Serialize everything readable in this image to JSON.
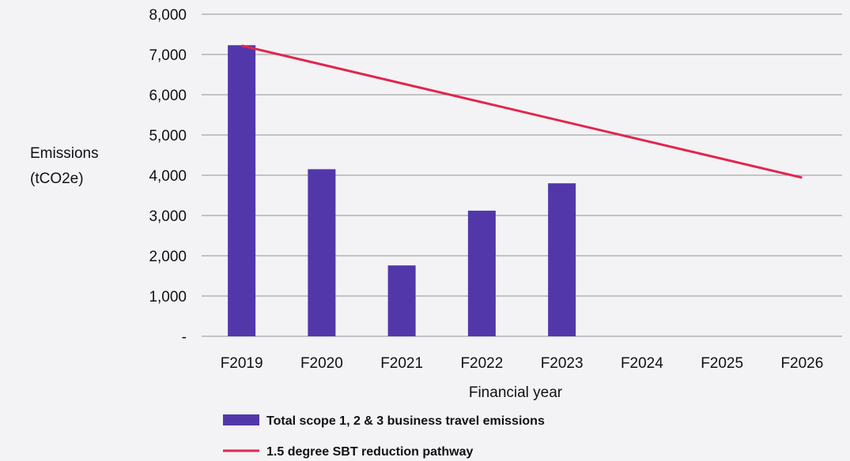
{
  "chart_data": {
    "type": "bar",
    "categories": [
      "F2019",
      "F2020",
      "F2021",
      "F2022",
      "F2023",
      "F2024",
      "F2025",
      "F2026"
    ],
    "series": [
      {
        "name": "Total scope 1, 2 & 3 business travel emissions",
        "type": "bar",
        "color": "#5237aa",
        "values": [
          7230,
          4150,
          1760,
          3120,
          3800,
          null,
          null,
          null
        ]
      },
      {
        "name": "1.5 degree SBT reduction pathway",
        "type": "line",
        "color": "#e0264f",
        "points": [
          {
            "x": "F2019",
            "y": 7220
          },
          {
            "x": "F2026",
            "y": 3940
          }
        ]
      }
    ],
    "ylabel": [
      "Emissions",
      "(tCO2e)"
    ],
    "xlabel": "Financial year",
    "ylim": [
      0,
      8000
    ],
    "yticks": [
      {
        "value": 0,
        "label": "-"
      },
      {
        "value": 1000,
        "label": "1,000"
      },
      {
        "value": 2000,
        "label": "2,000"
      },
      {
        "value": 3000,
        "label": "3,000"
      },
      {
        "value": 4000,
        "label": "4,000"
      },
      {
        "value": 5000,
        "label": "5,000"
      },
      {
        "value": 6000,
        "label": "6,000"
      },
      {
        "value": 7000,
        "label": "7,000"
      },
      {
        "value": 8000,
        "label": "8,000"
      }
    ],
    "grid": true,
    "legend_position": "bottom-left",
    "gridline_color": "#a6a6a6"
  }
}
